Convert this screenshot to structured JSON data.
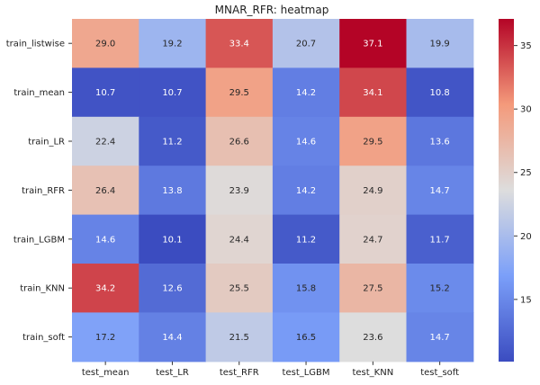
{
  "chart_data": {
    "type": "heatmap",
    "title": "MNAR_RFR: heatmap",
    "xlabel": "",
    "ylabel": "",
    "columns": [
      "test_mean",
      "test_LR",
      "test_RFR",
      "test_LGBM",
      "test_KNN",
      "test_soft"
    ],
    "rows": [
      "train_listwise",
      "train_mean",
      "train_LR",
      "train_RFR",
      "train_LGBM",
      "train_KNN",
      "train_soft"
    ],
    "values": [
      [
        29.0,
        19.2,
        33.4,
        20.7,
        37.1,
        19.9
      ],
      [
        10.7,
        10.7,
        29.5,
        14.2,
        34.1,
        10.8
      ],
      [
        22.4,
        11.2,
        26.6,
        14.6,
        29.5,
        13.6
      ],
      [
        26.4,
        13.8,
        23.9,
        14.2,
        24.9,
        14.7
      ],
      [
        14.6,
        10.1,
        24.4,
        11.2,
        24.7,
        11.7
      ],
      [
        34.2,
        12.6,
        25.5,
        15.8,
        27.5,
        15.2
      ],
      [
        17.2,
        14.4,
        21.5,
        16.5,
        23.6,
        14.7
      ]
    ],
    "value_format": "0.0",
    "colormap": "coolwarm",
    "colorbar": {
      "vmin": 10.1,
      "vmax": 37.1,
      "ticks": [
        15,
        20,
        25,
        30,
        35
      ]
    },
    "colormap_stops": [
      {
        "t": 0.0,
        "color": "#3b4cc0"
      },
      {
        "t": 0.25,
        "color": "#7b9ff9"
      },
      {
        "t": 0.5,
        "color": "#dddddd"
      },
      {
        "t": 0.75,
        "color": "#f49a7b"
      },
      {
        "t": 1.0,
        "color": "#b40426"
      }
    ]
  }
}
